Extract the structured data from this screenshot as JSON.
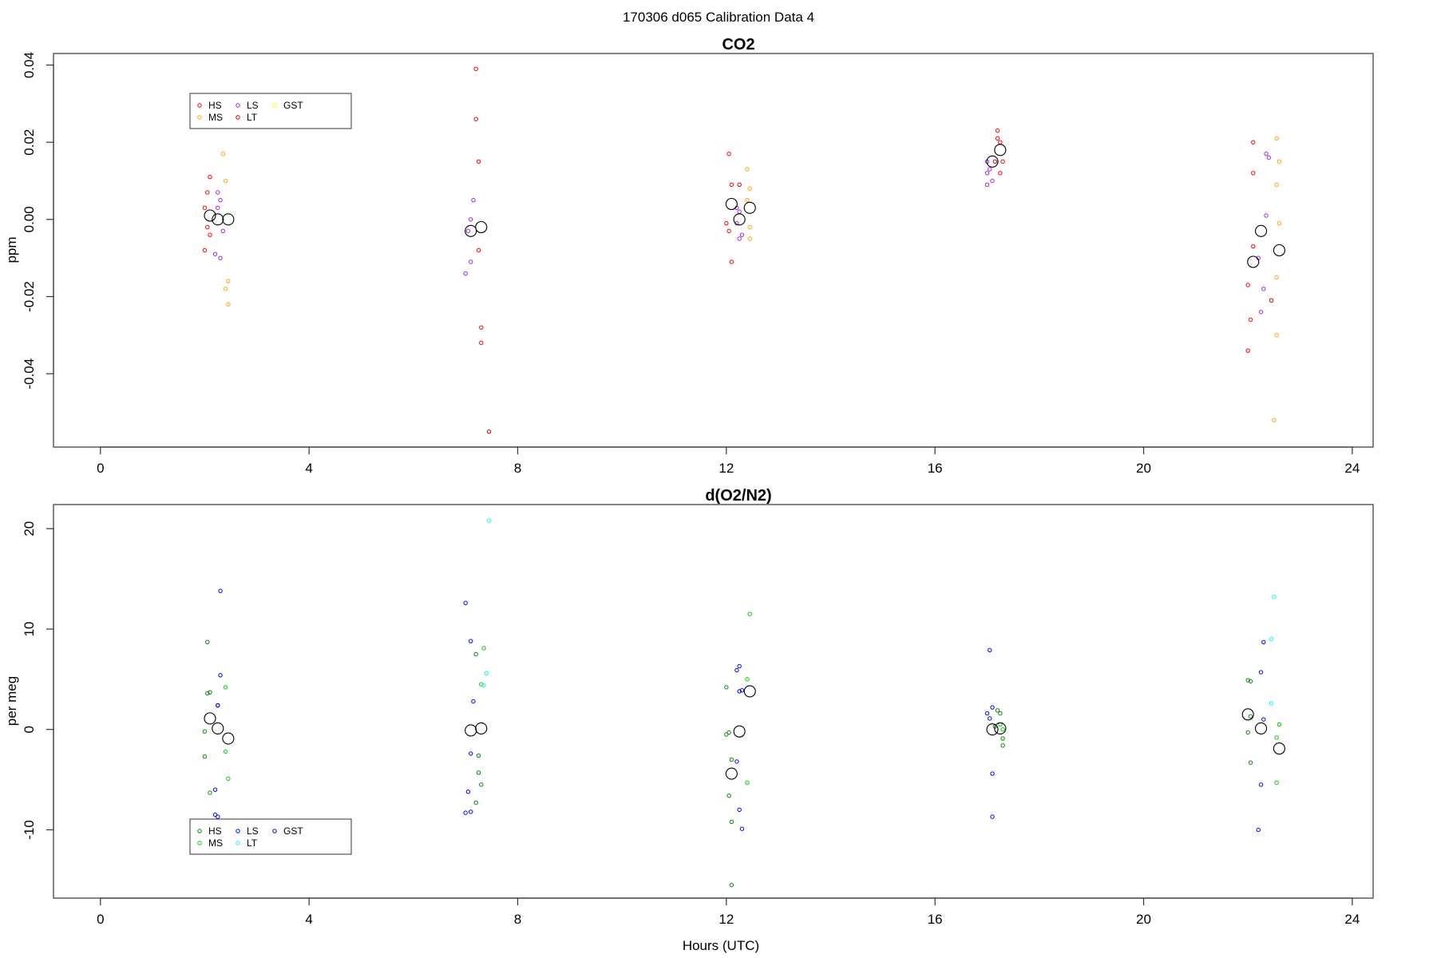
{
  "page": {
    "title": "170306   d065   Calibration Data 4",
    "x_axis_label": "Hours (UTC)"
  },
  "chart_data": [
    {
      "type": "scatter",
      "title": "CO2",
      "ylabel": "ppm",
      "xlim": [
        -0.9,
        24.4
      ],
      "ylim": [
        -0.059,
        0.043
      ],
      "x_ticks": [
        0,
        4,
        8,
        12,
        16,
        20,
        24
      ],
      "y_ticks": [
        -0.04,
        -0.02,
        0.0,
        0.02,
        0.04
      ],
      "x_tick_labels": [
        "0",
        "4",
        "8",
        "12",
        "16",
        "20",
        "24"
      ],
      "y_tick_labels": [
        "-0.04",
        "-0.02",
        "0.00",
        "0.02",
        "0.04"
      ],
      "legend": {
        "placement": "top-left",
        "entries": [
          {
            "name": "HS",
            "color": "#ff0000"
          },
          {
            "name": "MS",
            "color": "#ffa500"
          },
          {
            "name": "LS",
            "color": "#a020f0"
          },
          {
            "name": "LT",
            "color": "#cd0000"
          },
          {
            "name": "GST",
            "color": "#ffff00"
          }
        ]
      },
      "series": [
        {
          "name": "HS",
          "color": "#ff0000",
          "points": [
            [
              2.0,
              0.003
            ],
            [
              2.05,
              -0.002
            ],
            [
              2.1,
              0.011
            ],
            [
              2.1,
              -0.004
            ],
            [
              2.05,
              0.007
            ],
            [
              2.0,
              -0.008
            ],
            [
              7.2,
              0.039
            ],
            [
              7.2,
              0.026
            ],
            [
              7.25,
              0.015
            ],
            [
              7.3,
              -0.028
            ],
            [
              7.3,
              -0.032
            ],
            [
              7.25,
              -0.008
            ],
            [
              12.05,
              0.017
            ],
            [
              12.1,
              0.009
            ],
            [
              12.05,
              -0.003
            ],
            [
              12.0,
              -0.001
            ],
            [
              12.1,
              -0.011
            ],
            [
              17.2,
              0.023
            ],
            [
              17.25,
              0.02
            ],
            [
              17.3,
              0.015
            ],
            [
              17.25,
              0.012
            ],
            [
              17.2,
              0.021
            ],
            [
              22.0,
              -0.017
            ],
            [
              22.05,
              -0.026
            ],
            [
              22.1,
              0.02
            ],
            [
              22.1,
              0.012
            ],
            [
              22.0,
              -0.034
            ],
            [
              22.1,
              -0.007
            ]
          ]
        },
        {
          "name": "MS",
          "color": "#ffa500",
          "points": [
            [
              2.35,
              0.017
            ],
            [
              2.4,
              0.01
            ],
            [
              2.45,
              -0.016
            ],
            [
              2.4,
              -0.018
            ],
            [
              2.45,
              -0.022
            ],
            [
              12.4,
              0.013
            ],
            [
              12.45,
              0.008
            ],
            [
              12.4,
              0.005
            ],
            [
              12.45,
              -0.002
            ],
            [
              12.45,
              -0.005
            ],
            [
              22.55,
              0.021
            ],
            [
              22.6,
              0.015
            ],
            [
              22.55,
              0.009
            ],
            [
              22.6,
              -0.001
            ],
            [
              22.55,
              -0.015
            ],
            [
              22.55,
              -0.03
            ],
            [
              22.5,
              -0.052
            ]
          ]
        },
        {
          "name": "LS",
          "color": "#a020f0",
          "points": [
            [
              2.25,
              0.007
            ],
            [
              2.3,
              0.005
            ],
            [
              2.25,
              0.003
            ],
            [
              2.35,
              -0.003
            ],
            [
              2.3,
              -0.01
            ],
            [
              2.2,
              -0.009
            ],
            [
              7.15,
              0.005
            ],
            [
              7.1,
              0.0
            ],
            [
              7.05,
              -0.003
            ],
            [
              7.1,
              -0.011
            ],
            [
              7.0,
              -0.014
            ],
            [
              12.2,
              0.003
            ],
            [
              12.25,
              0.002
            ],
            [
              12.2,
              -0.001
            ],
            [
              12.3,
              -0.004
            ],
            [
              12.25,
              -0.005
            ],
            [
              17.0,
              0.015
            ],
            [
              17.05,
              0.013
            ],
            [
              17.0,
              0.012
            ],
            [
              17.1,
              0.01
            ],
            [
              17.0,
              0.009
            ],
            [
              22.35,
              0.017
            ],
            [
              22.4,
              0.016
            ],
            [
              22.35,
              0.001
            ],
            [
              22.3,
              -0.018
            ],
            [
              22.25,
              -0.024
            ],
            [
              22.2,
              -0.01
            ]
          ]
        },
        {
          "name": "LT",
          "color": "#cd0000",
          "points": [
            [
              7.45,
              -0.055
            ],
            [
              12.25,
              0.009
            ],
            [
              17.15,
              0.015
            ],
            [
              22.45,
              -0.021
            ]
          ]
        },
        {
          "name": "mean",
          "color": "#000000",
          "points": [
            [
              2.1,
              0.001
            ],
            [
              2.25,
              0.0
            ],
            [
              2.45,
              0.0
            ],
            [
              7.1,
              -0.003
            ],
            [
              7.3,
              -0.002
            ],
            [
              12.1,
              0.004
            ],
            [
              12.25,
              0.0
            ],
            [
              12.45,
              0.003
            ],
            [
              17.1,
              0.015
            ],
            [
              17.25,
              0.018
            ],
            [
              22.1,
              -0.011
            ],
            [
              22.25,
              -0.003
            ],
            [
              22.6,
              -0.008
            ]
          ]
        }
      ]
    },
    {
      "type": "scatter",
      "title": "d(O2/N2)",
      "ylabel": "per meg",
      "xlim": [
        -0.9,
        24.4
      ],
      "ylim": [
        -16.8,
        22.4
      ],
      "x_ticks": [
        0,
        4,
        8,
        12,
        16,
        20,
        24
      ],
      "y_ticks": [
        -10,
        0,
        10,
        20
      ],
      "x_tick_labels": [
        "0",
        "4",
        "8",
        "12",
        "16",
        "20",
        "24"
      ],
      "y_tick_labels": [
        "-10",
        "0",
        "10",
        "20"
      ],
      "legend": {
        "placement": "bottom-left",
        "entries": [
          {
            "name": "HS",
            "color": "#008b00"
          },
          {
            "name": "MS",
            "color": "#00cd00"
          },
          {
            "name": "LS",
            "color": "#0000ff"
          },
          {
            "name": "LT",
            "color": "#00ffff"
          },
          {
            "name": "GST",
            "color": "#00008b"
          }
        ]
      },
      "series": [
        {
          "name": "HS",
          "color": "#008b00",
          "points": [
            [
              2.05,
              8.7
            ],
            [
              2.1,
              3.7
            ],
            [
              2.05,
              3.6
            ],
            [
              2.0,
              -0.2
            ],
            [
              2.0,
              -2.7
            ],
            [
              2.1,
              -6.3
            ],
            [
              7.2,
              7.5
            ],
            [
              7.25,
              -4.3
            ],
            [
              7.3,
              -5.5
            ],
            [
              7.25,
              -2.6
            ],
            [
              7.2,
              -7.3
            ],
            [
              12.0,
              4.2
            ],
            [
              12.05,
              -0.3
            ],
            [
              12.0,
              -0.5
            ],
            [
              12.1,
              -3.0
            ],
            [
              12.05,
              -6.6
            ],
            [
              12.1,
              -9.2
            ],
            [
              12.1,
              -15.5
            ],
            [
              17.2,
              1.9
            ],
            [
              17.25,
              1.6
            ],
            [
              17.3,
              -0.9
            ],
            [
              17.3,
              -1.6
            ],
            [
              17.15,
              0.3
            ],
            [
              22.0,
              4.9
            ],
            [
              22.05,
              4.8
            ],
            [
              22.05,
              1.3
            ],
            [
              22.0,
              -0.3
            ],
            [
              22.05,
              -3.3
            ]
          ]
        },
        {
          "name": "MS",
          "color": "#00cd00",
          "points": [
            [
              2.4,
              4.2
            ],
            [
              2.4,
              -2.2
            ],
            [
              2.45,
              -4.9
            ],
            [
              7.35,
              8.1
            ],
            [
              7.3,
              4.5
            ],
            [
              12.45,
              11.5
            ],
            [
              12.4,
              5.0
            ],
            [
              12.4,
              -5.3
            ],
            [
              17.25,
              0.5
            ],
            [
              17.3,
              0.0
            ],
            [
              22.6,
              0.5
            ],
            [
              22.55,
              -0.8
            ],
            [
              22.55,
              -5.3
            ]
          ]
        },
        {
          "name": "LS",
          "color": "#0000ff",
          "points": [
            [
              2.3,
              13.8
            ],
            [
              2.3,
              5.4
            ],
            [
              2.25,
              2.4
            ],
            [
              2.25,
              2.4
            ],
            [
              2.2,
              -6.0
            ],
            [
              2.2,
              -8.5
            ],
            [
              2.25,
              -8.7
            ],
            [
              7.0,
              12.6
            ],
            [
              7.1,
              8.8
            ],
            [
              7.15,
              2.8
            ],
            [
              7.1,
              -2.4
            ],
            [
              7.05,
              -6.2
            ],
            [
              7.1,
              -8.2
            ],
            [
              7.0,
              -8.3
            ],
            [
              12.25,
              6.3
            ],
            [
              12.2,
              5.9
            ],
            [
              12.3,
              3.9
            ],
            [
              12.25,
              3.8
            ],
            [
              12.2,
              -3.2
            ],
            [
              12.25,
              -8.0
            ],
            [
              12.3,
              -9.9
            ],
            [
              17.05,
              7.9
            ],
            [
              17.1,
              2.2
            ],
            [
              17.0,
              1.6
            ],
            [
              17.05,
              1.1
            ],
            [
              17.1,
              -4.4
            ],
            [
              17.1,
              -8.7
            ],
            [
              22.3,
              8.7
            ],
            [
              22.25,
              5.7
            ],
            [
              22.3,
              1.0
            ],
            [
              22.25,
              -5.5
            ],
            [
              22.2,
              -10.0
            ]
          ]
        },
        {
          "name": "LT",
          "color": "#00ffff",
          "points": [
            [
              7.45,
              20.8
            ],
            [
              7.4,
              5.6
            ],
            [
              7.35,
              4.4
            ],
            [
              22.5,
              13.2
            ],
            [
              22.45,
              9.0
            ],
            [
              22.45,
              2.6
            ]
          ]
        },
        {
          "name": "mean",
          "color": "#000000",
          "points": [
            [
              2.1,
              1.1
            ],
            [
              2.25,
              0.1
            ],
            [
              2.45,
              -0.9
            ],
            [
              7.1,
              -0.1
            ],
            [
              7.3,
              0.1
            ],
            [
              12.1,
              -4.4
            ],
            [
              12.25,
              -0.2
            ],
            [
              12.45,
              3.8
            ],
            [
              17.1,
              0.0
            ],
            [
              17.25,
              0.1
            ],
            [
              22.0,
              1.5
            ],
            [
              22.25,
              0.1
            ],
            [
              22.6,
              -1.9
            ]
          ]
        }
      ]
    }
  ]
}
